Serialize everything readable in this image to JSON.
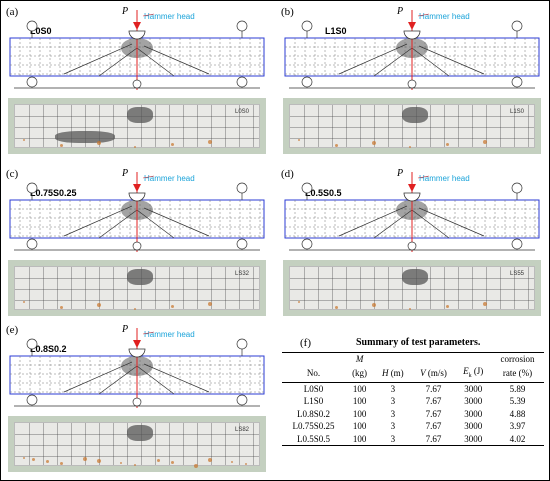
{
  "panels": [
    {
      "label": "(a)",
      "name": "L0S0",
      "spec_text": "L0S0",
      "force": "P",
      "hammer": "Hammer head"
    },
    {
      "label": "(b)",
      "name": "L1S0",
      "spec_text": "L1S0",
      "force": "P",
      "hammer": "Hammer head"
    },
    {
      "label": "(c)",
      "name": "L0.75S0.25",
      "spec_text": "LS32",
      "force": "P",
      "hammer": "Hammer head"
    },
    {
      "label": "(d)",
      "name": "L0.5S0.5",
      "spec_text": "LS55",
      "force": "P",
      "hammer": "Hammer head"
    },
    {
      "label": "(e)",
      "name": "L0.8S0.2",
      "spec_text": "LS82",
      "force": "P",
      "hammer": "Hammer head"
    }
  ],
  "table": {
    "label": "(f)",
    "caption": "Summary of test parameters.",
    "headers": [
      "No.",
      "M",
      "(kg)",
      "H",
      "(m)",
      "V",
      "(m/s)",
      "E",
      "k",
      "(J)",
      "corrosion",
      "rate (%)"
    ],
    "rows": [
      [
        "L0S0",
        "100",
        "3",
        "7.67",
        "3000",
        "5.89"
      ],
      [
        "L1S0",
        "100",
        "3",
        "7.67",
        "3000",
        "5.39"
      ],
      [
        "L0.8S0.2",
        "100",
        "3",
        "7.67",
        "3000",
        "4.88"
      ],
      [
        "L0.75S0.25",
        "100",
        "3",
        "7.67",
        "3000",
        "3.97"
      ],
      [
        "L0.5S0.5",
        "100",
        "3",
        "7.67",
        "3000",
        "4.02"
      ]
    ]
  }
}
